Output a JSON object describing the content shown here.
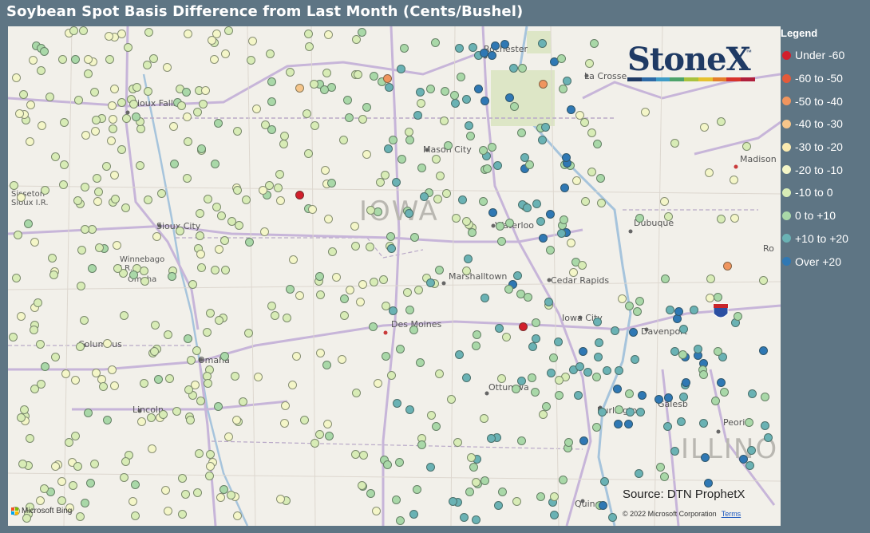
{
  "title": "Soybean Spot Basis Difference from Last Month (Cents/Bushel)",
  "logo": {
    "text": "StoneX",
    "trademark": "™",
    "bar_colors": [
      "#1f3a64",
      "#2d6aa6",
      "#3f9cc7",
      "#4ea36b",
      "#a8c23e",
      "#e6c230",
      "#e57f2a",
      "#d8332b",
      "#b01f3c"
    ]
  },
  "legend": {
    "title": "Legend",
    "items": [
      {
        "label": "Under -60",
        "color": "#d21f2c"
      },
      {
        "label": "-60 to -50",
        "color": "#e45a3a"
      },
      {
        "label": "-50 to -40",
        "color": "#f0955e"
      },
      {
        "label": "-40 to -30",
        "color": "#f6c58a"
      },
      {
        "label": "-30 to -20",
        "color": "#faeab0"
      },
      {
        "label": "-20 to -10",
        "color": "#f4f6c8"
      },
      {
        "label": "-10 to 0",
        "color": "#d8ecb6"
      },
      {
        "label": "0 to +10",
        "color": "#a9d8a8"
      },
      {
        "label": "+10 to +20",
        "color": "#6ab2b4"
      },
      {
        "label": "Over +20",
        "color": "#2f78b4"
      }
    ]
  },
  "map": {
    "state_labels": [
      "IOWA",
      "ILLINO"
    ],
    "cities": [
      "Rochester",
      "La Crosse",
      "Sioux Falls",
      "Mason City",
      "Madison",
      "Sisseton Sioux I.R.",
      "Waterloo",
      "Dubuque",
      "Sioux City",
      "Winnebago I.R.",
      "Omaha",
      "Marshalltown",
      "Cedar Rapids",
      "Ro",
      "Des Moines",
      "Iowa City",
      "Davenport",
      "Columbus",
      "Omaha",
      "Ottumwa",
      "Galesb",
      "Lincoln",
      "Burlington",
      "Peoria",
      "Quincy"
    ],
    "highway_shield": "80"
  },
  "source": "Source: DTN ProphetX",
  "copyright": "© 2022 Microsoft Corporation",
  "terms": "Terms",
  "attribution": "Microsoft Bing",
  "palette": [
    "#f4f6c8",
    "#d8ecb6",
    "#a9d8a8",
    "#6ab2b4",
    "#2f78b4",
    "#faeab0"
  ]
}
